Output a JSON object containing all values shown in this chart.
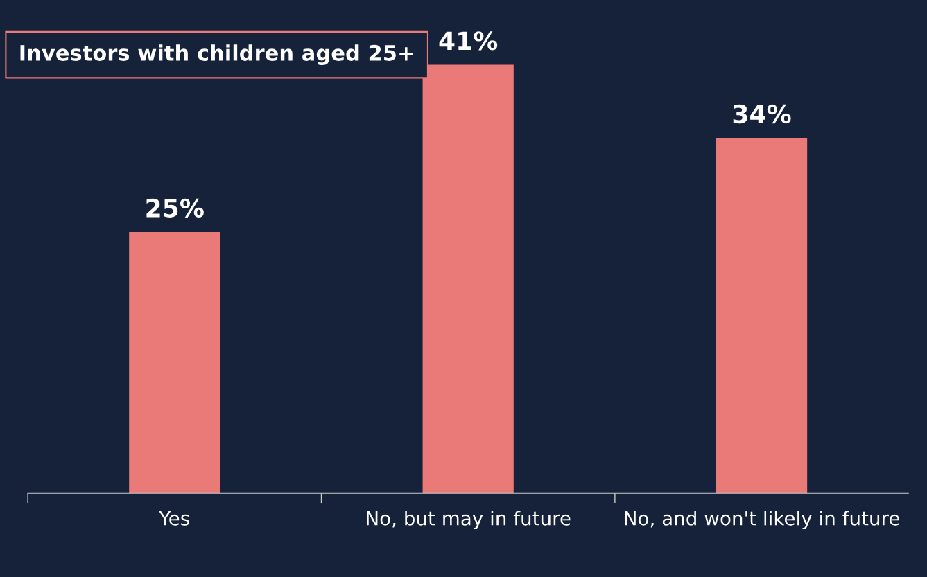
{
  "chart_data": {
    "type": "bar",
    "title": "Investors with children aged 25+",
    "categories": [
      "Yes",
      "No, but may in future",
      "No, and won't likely in future"
    ],
    "values": [
      25,
      41,
      34
    ],
    "value_labels": [
      "25%",
      "41%",
      "34%"
    ],
    "color": "#ea7a78",
    "grid": false
  }
}
